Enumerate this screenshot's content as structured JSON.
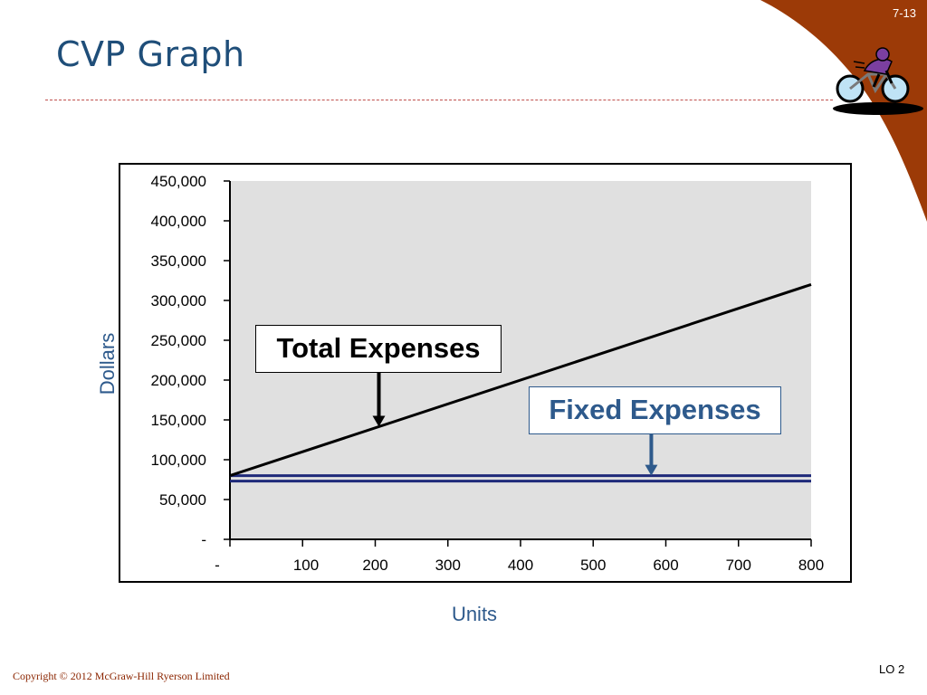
{
  "slide": {
    "number": "7-13",
    "title": "CVP Graph",
    "copyright": "Copyright © 2012 McGraw-Hill Ryerson Limited",
    "lo": "LO 2"
  },
  "colors": {
    "title": "#1F4E79",
    "accent_swoosh": "#9C3A07",
    "fixed_line": "#1F2A7A",
    "total_line": "#000000",
    "plot_bg": "#E0E0E0",
    "axis_title": "#2E5A8C"
  },
  "chart_data": {
    "type": "line",
    "xlabel": "Units",
    "ylabel": "Dollars",
    "xlim": [
      0,
      800
    ],
    "ylim": [
      0,
      450000
    ],
    "x_ticks": [
      {
        "value": 0,
        "label": "-"
      },
      {
        "value": 100,
        "label": "100"
      },
      {
        "value": 200,
        "label": "200"
      },
      {
        "value": 300,
        "label": "300"
      },
      {
        "value": 400,
        "label": "400"
      },
      {
        "value": 500,
        "label": "500"
      },
      {
        "value": 600,
        "label": "600"
      },
      {
        "value": 700,
        "label": "700"
      },
      {
        "value": 800,
        "label": "800"
      }
    ],
    "y_ticks": [
      {
        "value": 0,
        "label": "-"
      },
      {
        "value": 50000,
        "label": "50,000"
      },
      {
        "value": 100000,
        "label": "100,000"
      },
      {
        "value": 150000,
        "label": "150,000"
      },
      {
        "value": 200000,
        "label": "200,000"
      },
      {
        "value": 250000,
        "label": "250,000"
      },
      {
        "value": 300000,
        "label": "300,000"
      },
      {
        "value": 350000,
        "label": "350,000"
      },
      {
        "value": 400000,
        "label": "400,000"
      },
      {
        "value": 450000,
        "label": "450,000"
      }
    ],
    "grid": false,
    "series": [
      {
        "name": "Total Expenses",
        "x": [
          0,
          800
        ],
        "y": [
          80000,
          320000
        ]
      },
      {
        "name": "Fixed Expenses",
        "x": [
          0,
          800
        ],
        "y": [
          80000,
          80000
        ]
      }
    ],
    "annotations": [
      {
        "text": "Total Expenses",
        "points_to_x": 205
      },
      {
        "text": "Fixed Expenses",
        "points_to_x": 580
      }
    ]
  }
}
